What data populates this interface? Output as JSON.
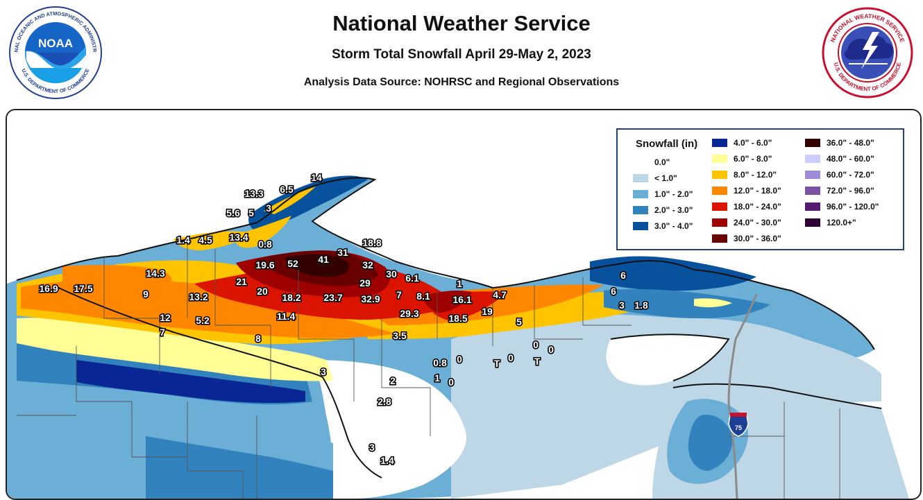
{
  "header": {
    "title": "National Weather Service",
    "subtitle": "Storm Total Snowfall April 29-May 2, 2023",
    "source": "Analysis Data Source: NOHRSC and Regional Observations"
  },
  "logos": {
    "noaa": {
      "center_text": "NOAA",
      "ring_top": "NATIONAL OCEANIC AND ATMOSPHERIC ADMINISTRATION",
      "ring_bottom": "U.S. DEPARTMENT OF COMMERCE"
    },
    "nws": {
      "ring_top": "NATIONAL WEATHER SERVICE",
      "ring_bottom": "U.S. DEPARTMENT OF COMMERCE"
    }
  },
  "legend": {
    "title": "Snowfall (in)",
    "items": [
      {
        "label": "0.0\"",
        "color": "#ffffff"
      },
      {
        "label": "< 1.0\"",
        "color": "#bdd7e7"
      },
      {
        "label": "1.0\" - 2.0\"",
        "color": "#6baed6"
      },
      {
        "label": "2.0\" - 3.0\"",
        "color": "#3182bd"
      },
      {
        "label": "3.0\" - 4.0\"",
        "color": "#08519c"
      },
      {
        "label": "4.0\" - 6.0\"",
        "color": "#082694"
      },
      {
        "label": "6.0\" - 8.0\"",
        "color": "#ffff96"
      },
      {
        "label": "8.0\" - 12.0\"",
        "color": "#ffc400"
      },
      {
        "label": "12.0\" - 18.0\"",
        "color": "#ff8700"
      },
      {
        "label": "18.0\" - 24.0\"",
        "color": "#db1400"
      },
      {
        "label": "24.0\" - 30.0\"",
        "color": "#9e0000"
      },
      {
        "label": "30.0\" - 36.0\"",
        "color": "#690000"
      },
      {
        "label": "36.0\" - 48.0\"",
        "color": "#330000"
      },
      {
        "label": "48.0\" - 60.0\"",
        "color": "#ccccff"
      },
      {
        "label": "60.0\" - 72.0\"",
        "color": "#9f8cd8"
      },
      {
        "label": "72.0\" - 96.0\"",
        "color": "#7c52a5"
      },
      {
        "label": "96.0\" - 120.0\"",
        "color": "#561c72"
      },
      {
        "label": "120.0+\"",
        "color": "#2e0033"
      }
    ]
  },
  "interstate": {
    "shield": "75"
  },
  "observations": [
    {
      "v": "14"
    },
    {
      "v": "13.3"
    },
    {
      "v": "6.5"
    },
    {
      "v": "3"
    },
    {
      "v": "5.6"
    },
    {
      "v": "5"
    },
    {
      "v": "1.4"
    },
    {
      "v": "4.5"
    },
    {
      "v": "13.4"
    },
    {
      "v": "0.8"
    },
    {
      "v": "18.8"
    },
    {
      "v": "19.6"
    },
    {
      "v": "52"
    },
    {
      "v": "41"
    },
    {
      "v": "31"
    },
    {
      "v": "32"
    },
    {
      "v": "30"
    },
    {
      "v": "6.1"
    },
    {
      "v": "14.3"
    },
    {
      "v": "21"
    },
    {
      "v": "16.9"
    },
    {
      "v": "17.5"
    },
    {
      "v": "9"
    },
    {
      "v": "20"
    },
    {
      "v": "18.2"
    },
    {
      "v": "23.7"
    },
    {
      "v": "29"
    },
    {
      "v": "7"
    },
    {
      "v": "8.1"
    },
    {
      "v": "1"
    },
    {
      "v": "16.1"
    },
    {
      "v": "4.7"
    },
    {
      "v": "13.2"
    },
    {
      "v": "32.9"
    },
    {
      "v": "6"
    },
    {
      "v": "6"
    },
    {
      "v": "3"
    },
    {
      "v": "1.8"
    },
    {
      "v": "12"
    },
    {
      "v": "5.2"
    },
    {
      "v": "11.4"
    },
    {
      "v": "29.3"
    },
    {
      "v": "18.5"
    },
    {
      "v": "19"
    },
    {
      "v": "5"
    },
    {
      "v": "7"
    },
    {
      "v": "8"
    },
    {
      "v": "3.5"
    },
    {
      "v": "0"
    },
    {
      "v": "0"
    },
    {
      "v": "0.8"
    },
    {
      "v": "0"
    },
    {
      "v": "T"
    },
    {
      "v": "0"
    },
    {
      "v": "T"
    },
    {
      "v": "3"
    },
    {
      "v": "2"
    },
    {
      "v": "1"
    },
    {
      "v": "0"
    },
    {
      "v": "2.8"
    },
    {
      "v": "3"
    },
    {
      "v": "1.4"
    }
  ]
}
